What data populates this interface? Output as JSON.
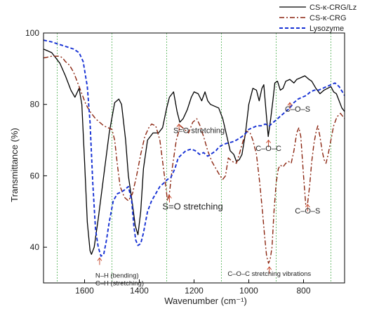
{
  "chart_data": {
    "type": "line",
    "title": "",
    "xlabel": "Wavenumber (cm⁻¹)",
    "ylabel": "Transmittance (%)",
    "xlim": [
      1750,
      650
    ],
    "ylim": [
      30,
      100
    ],
    "x_reversed": true,
    "grid": "vertical dotted green lines at 1700, 1500, 1300, 1100, 900, 700",
    "x_ticks": [
      1600,
      1400,
      1200,
      1000,
      800
    ],
    "y_ticks": [
      40,
      60,
      80,
      100
    ],
    "legend": {
      "placement": "top-right, outside the plot",
      "entries": [
        "CS-κ-CRG/Lz",
        "CS-κ-CRG",
        "Lysozyme"
      ]
    },
    "series": [
      {
        "name": "CS-κ-CRG/Lz",
        "color": "#000000",
        "style": "solid",
        "points": [
          [
            1750,
            95.5
          ],
          [
            1720,
            94.5
          ],
          [
            1690,
            91.5
          ],
          [
            1670,
            88
          ],
          [
            1650,
            84
          ],
          [
            1635,
            82
          ],
          [
            1620,
            84.5
          ],
          [
            1610,
            80
          ],
          [
            1600,
            64
          ],
          [
            1590,
            47
          ],
          [
            1580,
            39
          ],
          [
            1575,
            38
          ],
          [
            1565,
            40
          ],
          [
            1550,
            48
          ],
          [
            1530,
            60
          ],
          [
            1510,
            72
          ],
          [
            1490,
            80.5
          ],
          [
            1475,
            81.5
          ],
          [
            1465,
            80
          ],
          [
            1450,
            70
          ],
          [
            1440,
            60
          ],
          [
            1425,
            52
          ],
          [
            1415,
            46
          ],
          [
            1405,
            43.5
          ],
          [
            1395,
            50
          ],
          [
            1385,
            62
          ],
          [
            1370,
            70
          ],
          [
            1350,
            72
          ],
          [
            1330,
            72
          ],
          [
            1315,
            73.5
          ],
          [
            1300,
            79
          ],
          [
            1290,
            82
          ],
          [
            1275,
            83.5
          ],
          [
            1262,
            78
          ],
          [
            1252,
            75
          ],
          [
            1240,
            76
          ],
          [
            1225,
            78.5
          ],
          [
            1210,
            82
          ],
          [
            1200,
            83.5
          ],
          [
            1185,
            83
          ],
          [
            1172,
            81
          ],
          [
            1160,
            83.5
          ],
          [
            1150,
            81
          ],
          [
            1140,
            80
          ],
          [
            1125,
            79.5
          ],
          [
            1110,
            79
          ],
          [
            1095,
            76
          ],
          [
            1080,
            71
          ],
          [
            1068,
            67
          ],
          [
            1055,
            66
          ],
          [
            1045,
            64
          ],
          [
            1035,
            64.5
          ],
          [
            1025,
            66
          ],
          [
            1012,
            72
          ],
          [
            1000,
            80
          ],
          [
            985,
            84.5
          ],
          [
            972,
            84
          ],
          [
            962,
            81
          ],
          [
            952,
            84.5
          ],
          [
            945,
            85.5
          ],
          [
            937,
            78
          ],
          [
            929,
            71
          ],
          [
            920,
            76
          ],
          [
            912,
            81
          ],
          [
            905,
            86
          ],
          [
            895,
            86.5
          ],
          [
            885,
            84
          ],
          [
            875,
            84.5
          ],
          [
            865,
            86.5
          ],
          [
            850,
            87
          ],
          [
            835,
            86
          ],
          [
            825,
            87
          ],
          [
            810,
            87.5
          ],
          [
            795,
            88
          ],
          [
            780,
            87
          ],
          [
            770,
            86.5
          ],
          [
            755,
            84.5
          ],
          [
            740,
            83
          ],
          [
            725,
            84
          ],
          [
            712,
            84.5
          ],
          [
            700,
            85
          ],
          [
            690,
            83.5
          ],
          [
            680,
            83
          ],
          [
            670,
            81
          ],
          [
            660,
            79
          ],
          [
            650,
            78
          ]
        ]
      },
      {
        "name": "CS-κ-CRG",
        "color": "#8b2510",
        "style": "dash-dot",
        "points": [
          [
            1750,
            93
          ],
          [
            1720,
            93.5
          ],
          [
            1700,
            93.5
          ],
          [
            1690,
            93.5
          ],
          [
            1680,
            93
          ],
          [
            1670,
            92
          ],
          [
            1655,
            91
          ],
          [
            1640,
            89
          ],
          [
            1625,
            86
          ],
          [
            1610,
            83
          ],
          [
            1595,
            80
          ],
          [
            1580,
            78
          ],
          [
            1560,
            76
          ],
          [
            1545,
            75
          ],
          [
            1530,
            74
          ],
          [
            1515,
            73.5
          ],
          [
            1500,
            73
          ],
          [
            1490,
            70
          ],
          [
            1480,
            63
          ],
          [
            1470,
            57
          ],
          [
            1455,
            54
          ],
          [
            1440,
            53
          ],
          [
            1425,
            55
          ],
          [
            1410,
            60
          ],
          [
            1395,
            66
          ],
          [
            1380,
            71
          ],
          [
            1365,
            73.5
          ],
          [
            1355,
            74.5
          ],
          [
            1340,
            74
          ],
          [
            1325,
            70
          ],
          [
            1315,
            64
          ],
          [
            1305,
            58
          ],
          [
            1297,
            53
          ],
          [
            1290,
            55
          ],
          [
            1280,
            62
          ],
          [
            1265,
            70
          ],
          [
            1250,
            74
          ],
          [
            1235,
            73
          ],
          [
            1220,
            72
          ],
          [
            1205,
            75
          ],
          [
            1190,
            76
          ],
          [
            1178,
            74
          ],
          [
            1165,
            71
          ],
          [
            1150,
            67
          ],
          [
            1135,
            64
          ],
          [
            1120,
            62
          ],
          [
            1105,
            60
          ],
          [
            1095,
            59
          ],
          [
            1085,
            60
          ],
          [
            1075,
            65
          ],
          [
            1060,
            64
          ],
          [
            1045,
            63.5
          ],
          [
            1035,
            66
          ],
          [
            1020,
            70
          ],
          [
            1008,
            72.5
          ],
          [
            995,
            72
          ],
          [
            985,
            70
          ],
          [
            972,
            66
          ],
          [
            960,
            58
          ],
          [
            950,
            50
          ],
          [
            942,
            43
          ],
          [
            935,
            37.5
          ],
          [
            928,
            35.5
          ],
          [
            922,
            36.5
          ],
          [
            915,
            40
          ],
          [
            908,
            50
          ],
          [
            900,
            58
          ],
          [
            892,
            62
          ],
          [
            885,
            63
          ],
          [
            875,
            62.5
          ],
          [
            865,
            63.5
          ],
          [
            855,
            64
          ],
          [
            845,
            63.5
          ],
          [
            835,
            67
          ],
          [
            825,
            72
          ],
          [
            817,
            73.5
          ],
          [
            810,
            71
          ],
          [
            800,
            60
          ],
          [
            792,
            52
          ],
          [
            785,
            52.5
          ],
          [
            778,
            57
          ],
          [
            770,
            64
          ],
          [
            762,
            69
          ],
          [
            755,
            72
          ],
          [
            748,
            74
          ],
          [
            740,
            71
          ],
          [
            732,
            67
          ],
          [
            725,
            64.5
          ],
          [
            718,
            63.5
          ],
          [
            710,
            66
          ],
          [
            700,
            70
          ],
          [
            690,
            74
          ],
          [
            678,
            76.5
          ],
          [
            665,
            77.5
          ],
          [
            650,
            76
          ]
        ]
      },
      {
        "name": "Lysozyme",
        "color": "#1530d4",
        "style": "dashed",
        "points": [
          [
            1750,
            98
          ],
          [
            1720,
            97.5
          ],
          [
            1700,
            97
          ],
          [
            1680,
            96.5
          ],
          [
            1660,
            96
          ],
          [
            1640,
            95.5
          ],
          [
            1620,
            94.5
          ],
          [
            1605,
            92
          ],
          [
            1590,
            85
          ],
          [
            1580,
            75
          ],
          [
            1570,
            58
          ],
          [
            1560,
            45
          ],
          [
            1550,
            40
          ],
          [
            1540,
            37.5
          ],
          [
            1530,
            38
          ],
          [
            1520,
            42
          ],
          [
            1510,
            47
          ],
          [
            1495,
            53
          ],
          [
            1480,
            55
          ],
          [
            1465,
            55.5
          ],
          [
            1455,
            56
          ],
          [
            1440,
            57
          ],
          [
            1428,
            53
          ],
          [
            1420,
            46
          ],
          [
            1413,
            42
          ],
          [
            1405,
            40.5
          ],
          [
            1395,
            41
          ],
          [
            1385,
            44
          ],
          [
            1370,
            50
          ],
          [
            1355,
            53
          ],
          [
            1340,
            55
          ],
          [
            1325,
            57
          ],
          [
            1310,
            58
          ],
          [
            1297,
            59
          ],
          [
            1285,
            59.5
          ],
          [
            1270,
            62
          ],
          [
            1258,
            65
          ],
          [
            1245,
            66
          ],
          [
            1230,
            67
          ],
          [
            1210,
            67.5
          ],
          [
            1195,
            67
          ],
          [
            1180,
            66
          ],
          [
            1165,
            66.5
          ],
          [
            1150,
            65.5
          ],
          [
            1140,
            66
          ],
          [
            1120,
            67
          ],
          [
            1110,
            68
          ],
          [
            1100,
            68.5
          ],
          [
            1085,
            69
          ],
          [
            1060,
            69.5
          ],
          [
            1045,
            70
          ],
          [
            1025,
            71
          ],
          [
            1010,
            72
          ],
          [
            1000,
            73
          ],
          [
            985,
            73.5
          ],
          [
            970,
            74
          ],
          [
            955,
            74
          ],
          [
            940,
            74.5
          ],
          [
            925,
            74
          ],
          [
            910,
            75
          ],
          [
            895,
            76
          ],
          [
            880,
            77
          ],
          [
            865,
            78
          ],
          [
            850,
            79
          ],
          [
            835,
            80.5
          ],
          [
            820,
            81.5
          ],
          [
            805,
            82
          ],
          [
            790,
            82.5
          ],
          [
            775,
            83.5
          ],
          [
            760,
            84
          ],
          [
            745,
            84
          ],
          [
            730,
            84.5
          ],
          [
            715,
            85
          ],
          [
            700,
            85.5
          ],
          [
            685,
            86
          ],
          [
            670,
            85
          ],
          [
            650,
            82.5
          ]
        ]
      }
    ],
    "annotations": [
      {
        "id": "nh",
        "lines": [
          "N–H (bending)",
          "C–H (stretching)"
        ],
        "x": 1545,
        "y": 37
      },
      {
        "id": "so-lower",
        "lines": [
          "S=O stretching"
        ],
        "x": 1290,
        "y": 54.5
      },
      {
        "id": "so-upper",
        "lines": [
          "S=O stretching"
        ],
        "x": 1255,
        "y": 74.5
      },
      {
        "id": "coc-upper",
        "lines": [
          "C–O–C"
        ],
        "x": 928,
        "y": 70
      },
      {
        "id": "cos-upper",
        "lines": [
          "C–O–S"
        ],
        "x": 850,
        "y": 80.5
      },
      {
        "id": "coc-stretch",
        "lines": [
          "C–O–C stretching vibrations"
        ],
        "x": 925,
        "y": 34.5
      },
      {
        "id": "cos-lower",
        "lines": [
          "C–O–S"
        ],
        "x": 785,
        "y": 52
      }
    ]
  }
}
